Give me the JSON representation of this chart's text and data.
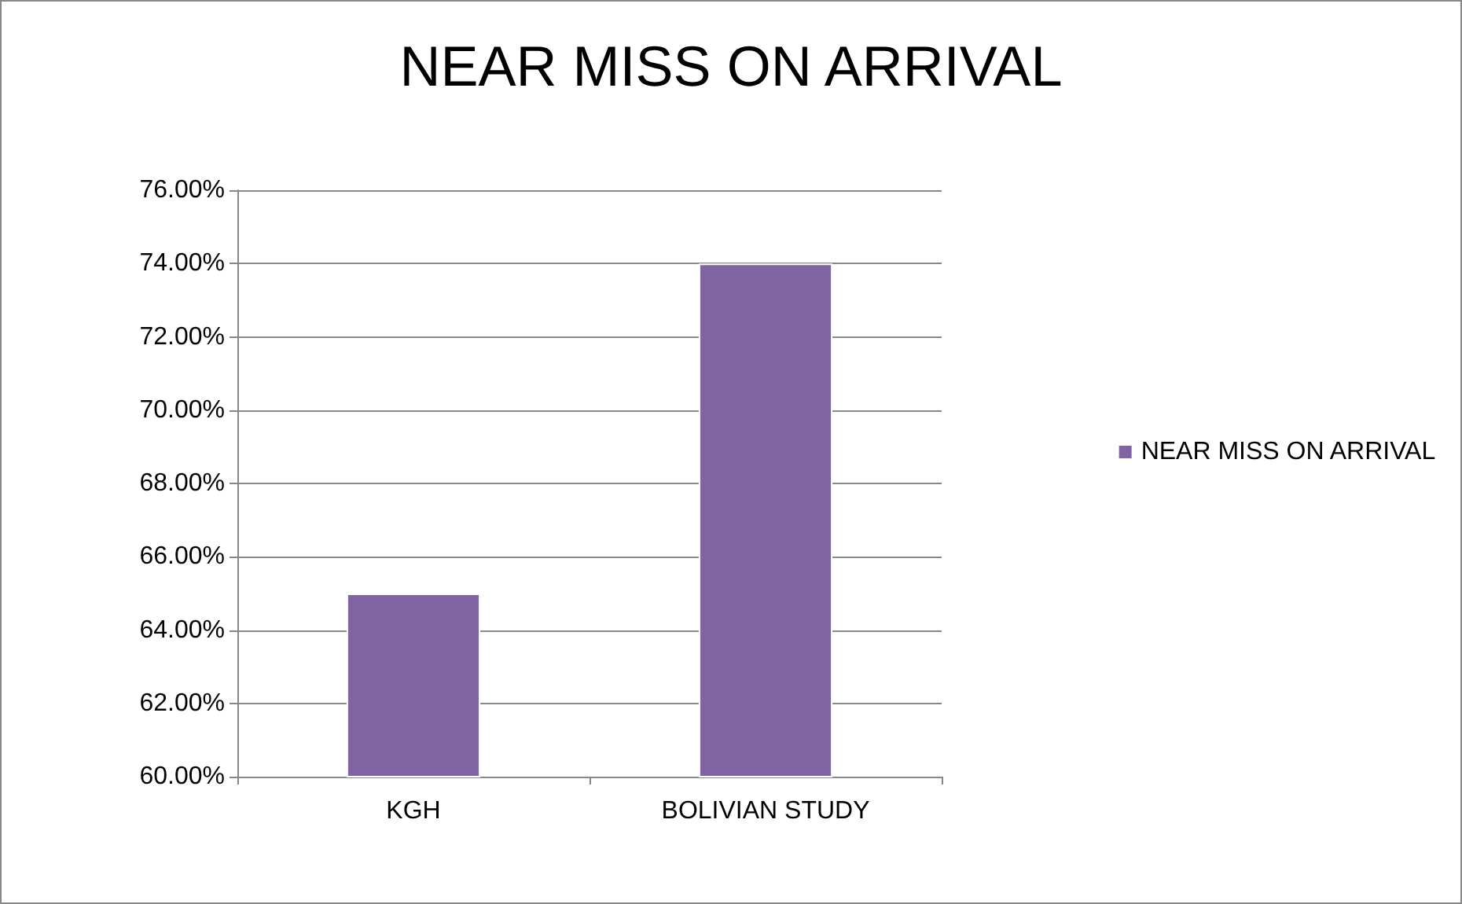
{
  "chart_data": {
    "type": "bar",
    "title": "NEAR MISS ON ARRIVAL",
    "categories": [
      "KGH",
      "BOLIVIAN STUDY"
    ],
    "series": [
      {
        "name": "NEAR MISS ON ARRIVAL",
        "color": "#8064a2",
        "values": [
          65,
          74
        ]
      }
    ],
    "ylim": [
      60,
      76
    ],
    "yticks": [
      {
        "value": 60,
        "label": "60.00%"
      },
      {
        "value": 62,
        "label": "62.00%"
      },
      {
        "value": 64,
        "label": "64.00%"
      },
      {
        "value": 66,
        "label": "66.00%"
      },
      {
        "value": 68,
        "label": "68.00%"
      },
      {
        "value": 70,
        "label": "70.00%"
      },
      {
        "value": 72,
        "label": "72.00%"
      },
      {
        "value": 74,
        "label": "74.00%"
      },
      {
        "value": 76,
        "label": "76.00%"
      }
    ],
    "grid": true,
    "legend": "right"
  }
}
